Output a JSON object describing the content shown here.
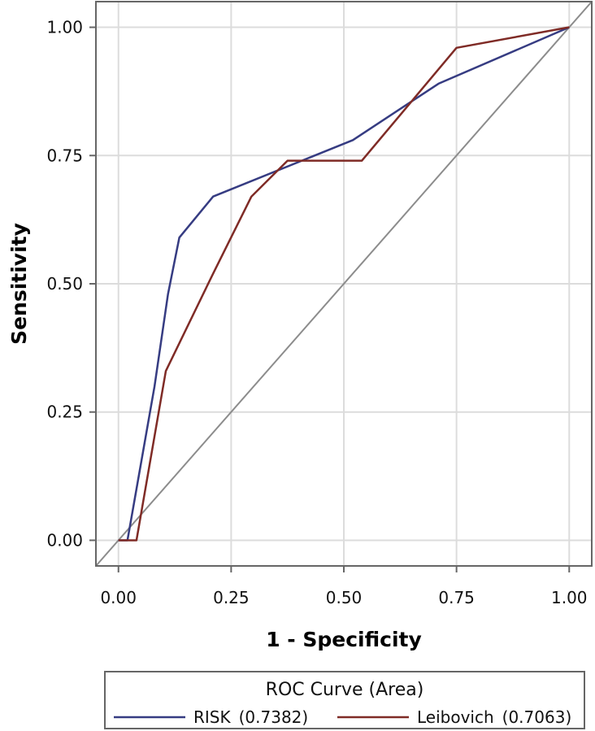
{
  "chart_data": {
    "type": "line",
    "title": "",
    "xlabel": "1 - Specificity",
    "ylabel": "Sensitivity",
    "xlim": [
      -0.05,
      1.05
    ],
    "ylim": [
      -0.05,
      1.05
    ],
    "x_ticks": [
      "0.00",
      "0.25",
      "0.50",
      "0.75",
      "1.00"
    ],
    "y_ticks": [
      "0.00",
      "0.25",
      "0.50",
      "0.75",
      "1.00"
    ],
    "grid": true,
    "legend_position": "bottom",
    "legend": {
      "title": "ROC Curve (Area)",
      "entries": [
        {
          "label": "RISK",
          "value": "(0.7382)"
        },
        {
          "label": "Leibovich",
          "value": "(0.7063)"
        }
      ]
    },
    "reference_line": {
      "x": [
        -0.05,
        1.05
      ],
      "y": [
        -0.05,
        1.05
      ],
      "color": "#8c8c8c"
    },
    "series": [
      {
        "name": "RISK",
        "color": "#363c82",
        "x": [
          0.0,
          0.02,
          0.08,
          0.11,
          0.135,
          0.21,
          0.52,
          0.71,
          1.0
        ],
        "y": [
          0.0,
          0.0,
          0.3,
          0.48,
          0.59,
          0.67,
          0.78,
          0.89,
          1.0
        ]
      },
      {
        "name": "Leibovich",
        "color": "#7f2b26",
        "x": [
          0.0,
          0.04,
          0.105,
          0.21,
          0.295,
          0.375,
          0.54,
          0.75,
          1.0
        ],
        "y": [
          0.0,
          0.0,
          0.33,
          0.52,
          0.67,
          0.74,
          0.74,
          0.96,
          1.0
        ]
      }
    ]
  }
}
